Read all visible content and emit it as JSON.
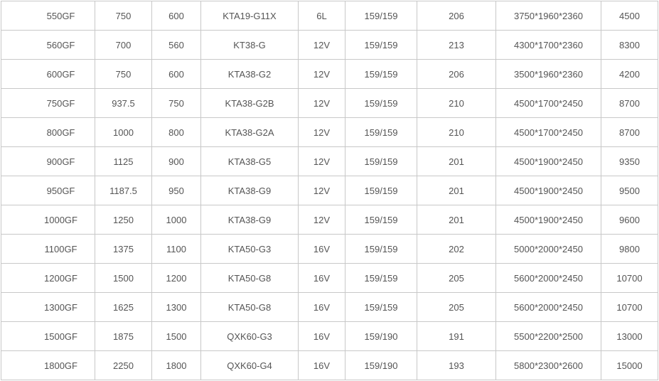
{
  "table": {
    "rows": [
      [
        "550GF",
        "750",
        "600",
        "KTA19-G11X",
        "6L",
        "159/159",
        "206",
        "3750*1960*2360",
        "4500"
      ],
      [
        "560GF",
        "700",
        "560",
        "KT38-G",
        "12V",
        "159/159",
        "213",
        "4300*1700*2360",
        "8300"
      ],
      [
        "600GF",
        "750",
        "600",
        "KTA38-G2",
        "12V",
        "159/159",
        "206",
        "3500*1960*2360",
        "4200"
      ],
      [
        "750GF",
        "937.5",
        "750",
        "KTA38-G2B",
        "12V",
        "159/159",
        "210",
        "4500*1700*2450",
        "8700"
      ],
      [
        "800GF",
        "1000",
        "800",
        "KTA38-G2A",
        "12V",
        "159/159",
        "210",
        "4500*1700*2450",
        "8700"
      ],
      [
        "900GF",
        "1125",
        "900",
        "KTA38-G5",
        "12V",
        "159/159",
        "201",
        "4500*1900*2450",
        "9350"
      ],
      [
        "950GF",
        "1187.5",
        "950",
        "KTA38-G9",
        "12V",
        "159/159",
        "201",
        "4500*1900*2450",
        "9500"
      ],
      [
        "1000GF",
        "1250",
        "1000",
        "KTA38-G9",
        "12V",
        "159/159",
        "201",
        "4500*1900*2450",
        "9600"
      ],
      [
        "1100GF",
        "1375",
        "1100",
        "KTA50-G3",
        "16V",
        "159/159",
        "202",
        "5000*2000*2450",
        "9800"
      ],
      [
        "1200GF",
        "1500",
        "1200",
        "KTA50-G8",
        "16V",
        "159/159",
        "205",
        "5600*2000*2450",
        "10700"
      ],
      [
        "1300GF",
        "1625",
        "1300",
        "KTA50-G8",
        "16V",
        "159/159",
        "205",
        "5600*2000*2450",
        "10700"
      ],
      [
        "1500GF",
        "1875",
        "1500",
        "QXK60-G3",
        "16V",
        "159/190",
        "191",
        "5500*2200*2500",
        "13000"
      ],
      [
        "1800GF",
        "2250",
        "1800",
        "QXK60-G4",
        "16V",
        "159/190",
        "193",
        "5800*2300*2600",
        "15000"
      ]
    ]
  }
}
